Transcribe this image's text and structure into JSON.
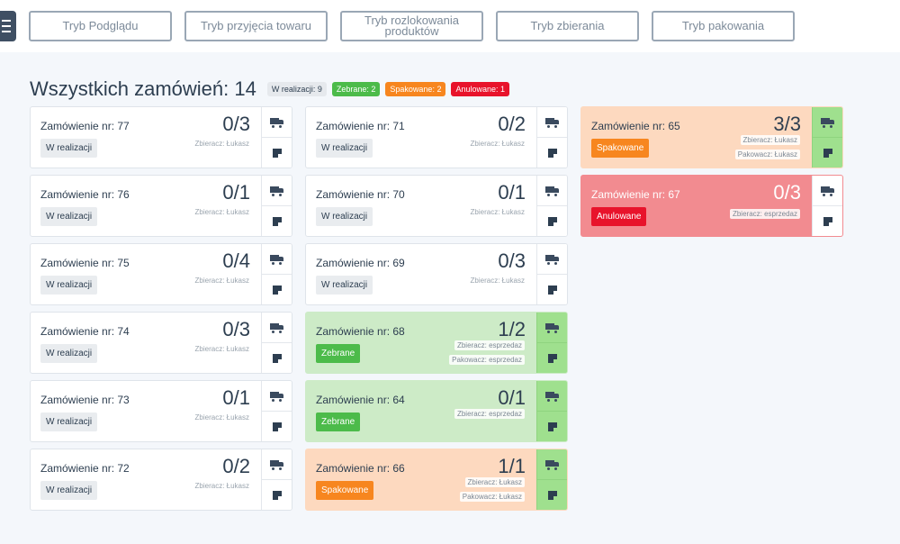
{
  "modes": [
    {
      "label": "Tryb Podglądu",
      "active": true
    },
    {
      "label": "Tryb przyjęcia towaru",
      "active": false
    },
    {
      "label": "Tryb rozlokowania produktów",
      "active": false
    },
    {
      "label": "Tryb zbierania",
      "active": false
    },
    {
      "label": "Tryb pakowania",
      "active": false
    }
  ],
  "summary": {
    "title": "Wszystkich zamówień: 14",
    "chips": [
      {
        "label": "W realizacji: 9",
        "style": "gray"
      },
      {
        "label": "Zebrane: 2",
        "style": "green"
      },
      {
        "label": "Spakowane: 2",
        "style": "orange"
      },
      {
        "label": "Anulowane: 1",
        "style": "red"
      }
    ]
  },
  "orders": [
    {
      "title": "Zamówienie nr: 77",
      "count": "0/3",
      "status": "W realizacji",
      "state": "plain",
      "picker": "Zbieracz: Łukasz"
    },
    {
      "title": "Zamówienie nr: 76",
      "count": "0/1",
      "status": "W realizacji",
      "state": "plain",
      "picker": "Zbieracz: Łukasz"
    },
    {
      "title": "Zamówienie nr: 75",
      "count": "0/4",
      "status": "W realizacji",
      "state": "plain",
      "picker": "Zbieracz: Łukasz"
    },
    {
      "title": "Zamówienie nr: 74",
      "count": "0/3",
      "status": "W realizacji",
      "state": "plain",
      "picker": "Zbieracz: Łukasz"
    },
    {
      "title": "Zamówienie nr: 73",
      "count": "0/1",
      "status": "W realizacji",
      "state": "plain",
      "picker": "Zbieracz: Łukasz"
    },
    {
      "title": "Zamówienie nr: 72",
      "count": "0/2",
      "status": "W realizacji",
      "state": "plain",
      "picker": "Zbieracz: Łukasz"
    },
    {
      "title": "Zamówienie nr: 71",
      "count": "0/2",
      "status": "W realizacji",
      "state": "plain",
      "picker": "Zbieracz: Łukasz"
    },
    {
      "title": "Zamówienie nr: 70",
      "count": "0/1",
      "status": "W realizacji",
      "state": "plain",
      "picker": "Zbieracz: Łukasz"
    },
    {
      "title": "Zamówienie nr: 69",
      "count": "0/3",
      "status": "W realizacji",
      "state": "plain",
      "picker": "Zbieracz: Łukasz"
    },
    {
      "title": "Zamówienie nr: 68",
      "count": "1/2",
      "status": "Zebrane",
      "state": "green",
      "picker": "Zbieracz: esprzedaz",
      "packer": "Pakowacz: esprzedaz"
    },
    {
      "title": "Zamówienie nr: 64",
      "count": "0/1",
      "status": "Zebrane",
      "state": "green",
      "picker": "Zbieracz: esprzedaz"
    },
    {
      "title": "Zamówienie nr: 66",
      "count": "1/1",
      "status": "Spakowane",
      "state": "orange",
      "picker": "Zbieracz: Łukasz",
      "packer": "Pakowacz: Łukasz"
    },
    {
      "title": "Zamówienie nr: 65",
      "count": "3/3",
      "status": "Spakowane",
      "state": "orange",
      "picker": "Zbieracz: Łukasz",
      "packer": "Pakowacz: Łukasz"
    },
    {
      "title": "Zamówienie nr: 67",
      "count": "0/3",
      "status": "Anulowane",
      "state": "red",
      "picker": "Zbieracz: esprzedaz"
    }
  ]
}
